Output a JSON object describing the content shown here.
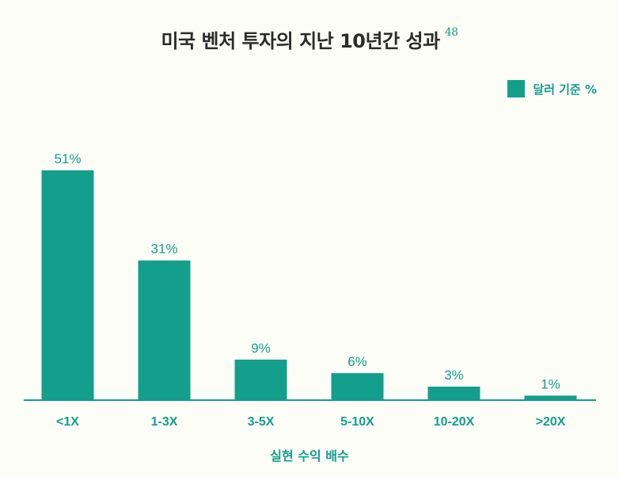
{
  "title": "미국 벤처 투자의 지난 10년간 성과",
  "title_note": "48",
  "legend": "달러 기준 %",
  "accent_color": "#149e8c",
  "chart_data": {
    "type": "bar",
    "title": "미국 벤처 투자의 지난 10년간 성과",
    "xlabel": "실현 수익 배수",
    "ylabel": "",
    "categories": [
      "<1X",
      "1-3X",
      "3-5X",
      "5-10X",
      "10-20X",
      ">20X"
    ],
    "values": [
      51,
      31,
      9,
      6,
      3,
      1
    ],
    "value_labels": [
      "51%",
      "31%",
      "9%",
      "6%",
      "3%",
      "1%"
    ],
    "series": [
      {
        "name": "달러 기준 %",
        "values": [
          51,
          31,
          9,
          6,
          3,
          1
        ]
      }
    ],
    "ylim": [
      0,
      51
    ],
    "grid": false,
    "legend_position": "top-right",
    "color": "#149e8c"
  }
}
